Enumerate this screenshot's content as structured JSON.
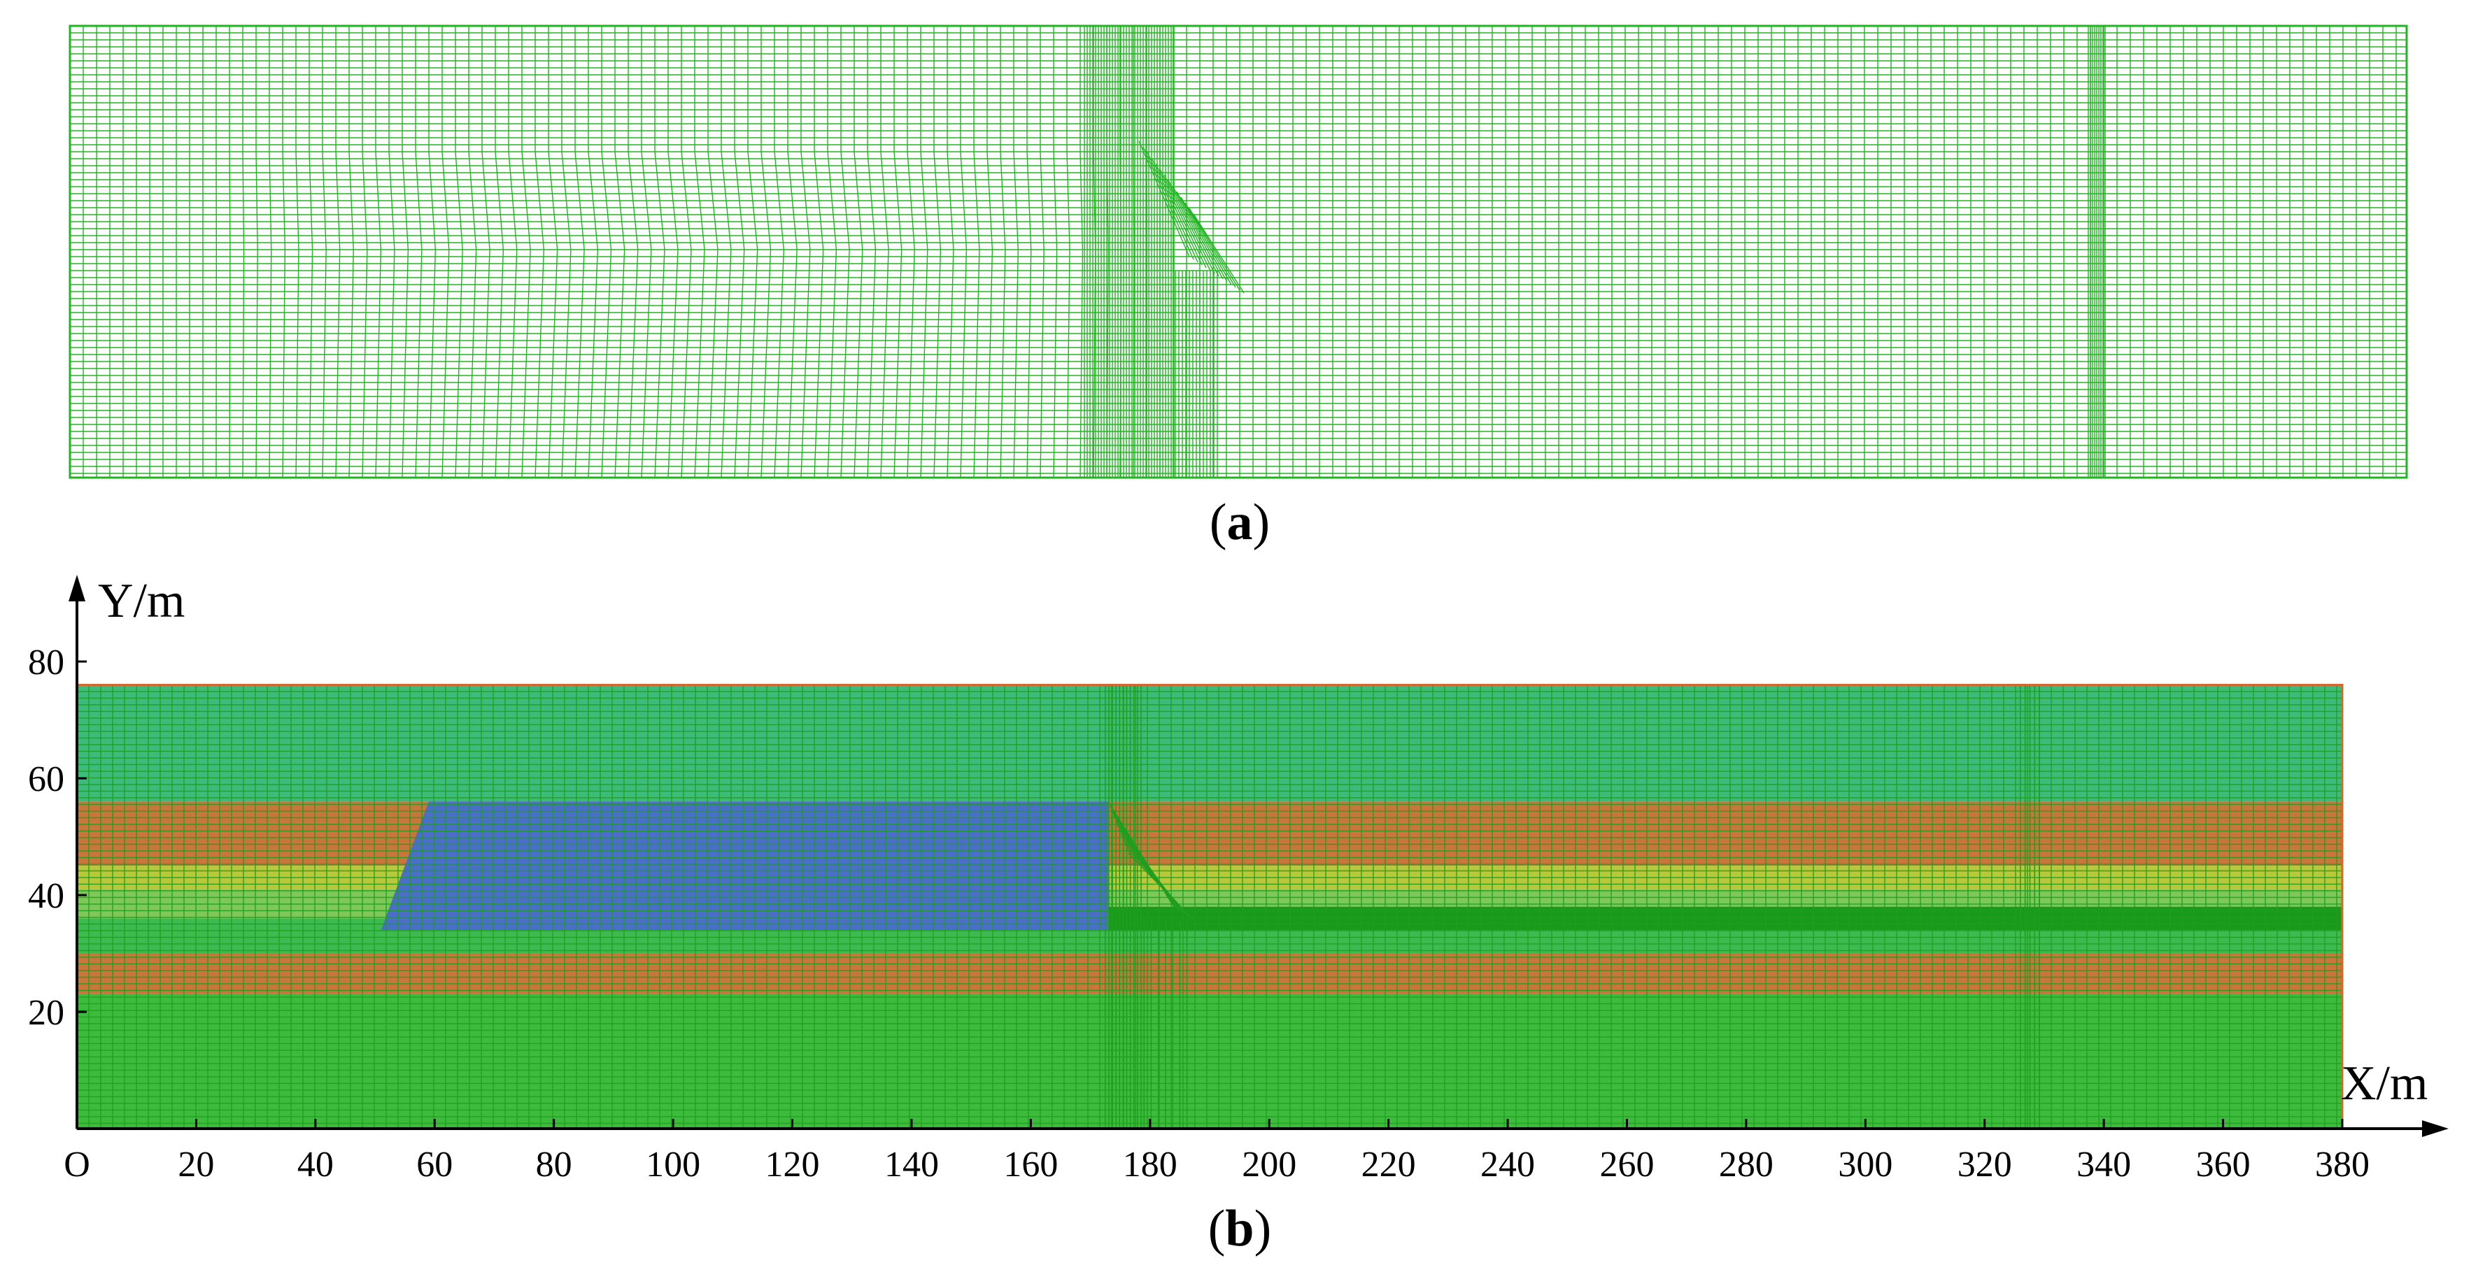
{
  "panel_a": {
    "caption_letter": "a",
    "mesh_color": "#22b522"
  },
  "panel_b": {
    "caption_letter": "b",
    "x_axis_label": "X/m",
    "y_axis_label": "Y/m",
    "origin_label": "O",
    "x_ticks": [
      20,
      40,
      60,
      80,
      100,
      120,
      140,
      160,
      180,
      200,
      220,
      240,
      260,
      280,
      300,
      320,
      340,
      360,
      380
    ],
    "y_ticks": [
      20,
      40,
      60,
      80
    ],
    "x_range": [
      0,
      380
    ],
    "y_range": [
      0,
      80
    ],
    "model_extent": {
      "x": [
        0,
        380
      ],
      "y": [
        0,
        76
      ]
    },
    "strata": [
      {
        "y": [
          56,
          76
        ],
        "color": "#3dbb7a"
      },
      {
        "y": [
          45,
          56
        ],
        "color": "#c8763a"
      },
      {
        "y": [
          41,
          45
        ],
        "color": "#b8c83a"
      },
      {
        "y": [
          36,
          41
        ],
        "color": "#7ec85a"
      },
      {
        "y": [
          30,
          36
        ],
        "color": "#3dbb50"
      },
      {
        "y": [
          23,
          30
        ],
        "color": "#c8763a"
      },
      {
        "y": [
          0,
          23
        ],
        "color": "#3dbb3d"
      }
    ],
    "excavated_zone": {
      "x_bottom": [
        51,
        173
      ],
      "x_top": [
        59,
        173
      ],
      "y": [
        34,
        56
      ],
      "color": "#4a6fc8"
    },
    "roadway_band": {
      "x": [
        173,
        380
      ],
      "y": [
        34,
        38
      ],
      "color": "#1a9a1a"
    },
    "mesh_color": "#1f9e1f"
  }
}
